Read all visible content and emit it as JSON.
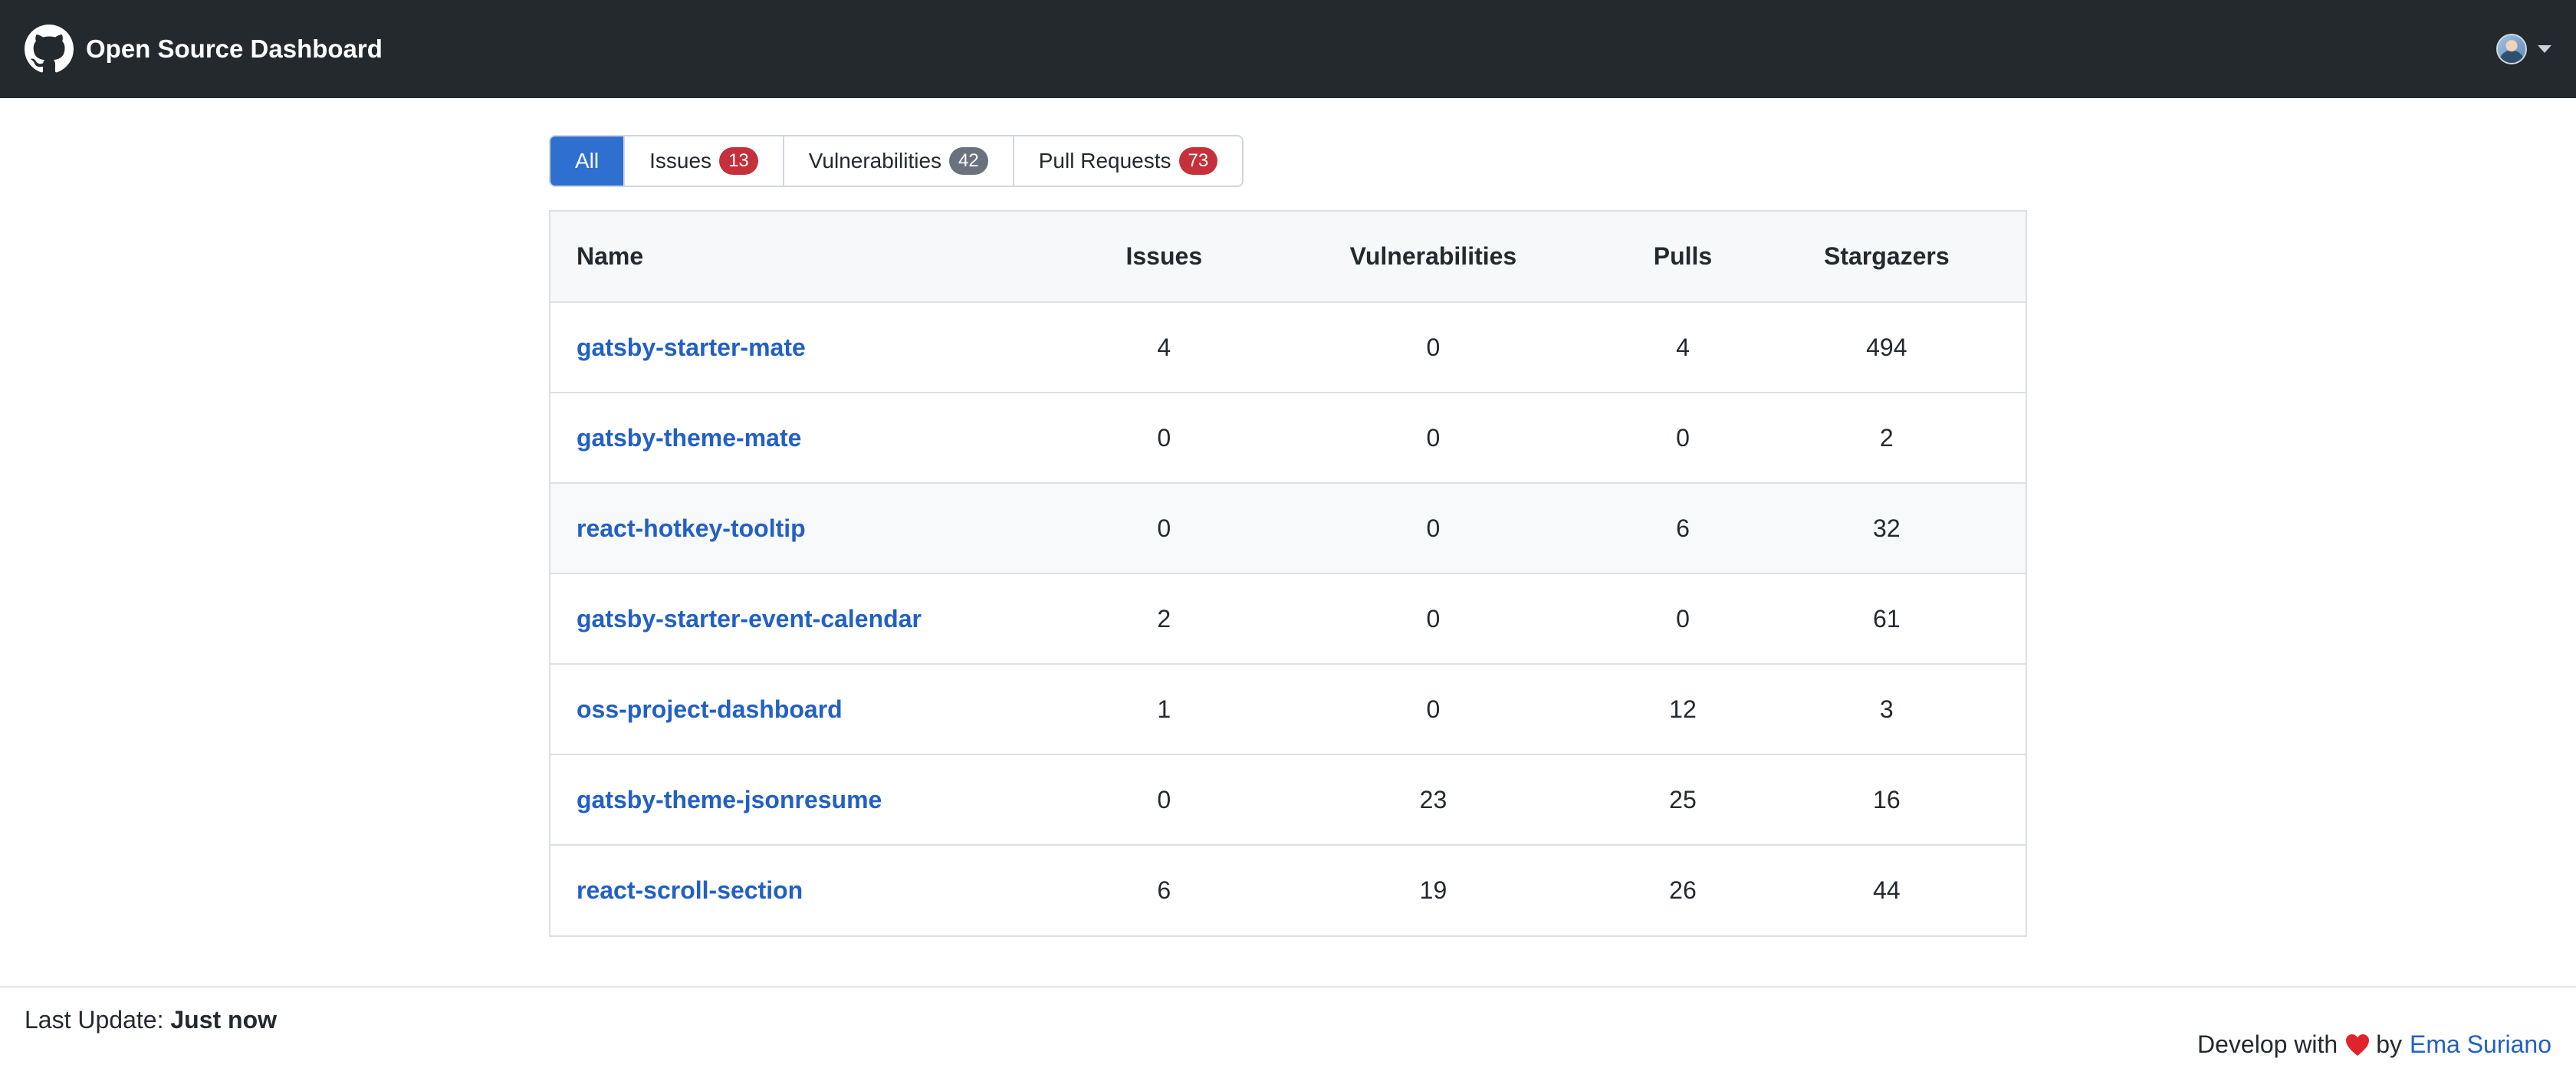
{
  "header": {
    "title": "Open Source Dashboard",
    "logo_icon": "github-icon",
    "avatar_icon": "user-avatar",
    "menu_icon": "chevron-down-icon"
  },
  "tabs": [
    {
      "label": "All",
      "count": null,
      "active": true
    },
    {
      "label": "Issues",
      "count": "13",
      "badge_color": "#c5303a"
    },
    {
      "label": "Vulnerabilities",
      "count": "42",
      "badge_color": "#6a737d"
    },
    {
      "label": "Pull Requests",
      "count": "73",
      "badge_color": "#c5303a"
    }
  ],
  "table": {
    "columns": [
      "Name",
      "Issues",
      "Vulnerabilities",
      "Pulls",
      "Stargazers"
    ],
    "rows": [
      {
        "name": "gatsby-starter-mate",
        "issues": "4",
        "vulnerabilities": "0",
        "pulls": "4",
        "stargazers": "494"
      },
      {
        "name": "gatsby-theme-mate",
        "issues": "0",
        "vulnerabilities": "0",
        "pulls": "0",
        "stargazers": "2"
      },
      {
        "name": "react-hotkey-tooltip",
        "issues": "0",
        "vulnerabilities": "0",
        "pulls": "6",
        "stargazers": "32"
      },
      {
        "name": "gatsby-starter-event-calendar",
        "issues": "2",
        "vulnerabilities": "0",
        "pulls": "0",
        "stargazers": "61"
      },
      {
        "name": "oss-project-dashboard",
        "issues": "1",
        "vulnerabilities": "0",
        "pulls": "12",
        "stargazers": "3"
      },
      {
        "name": "gatsby-theme-jsonresume",
        "issues": "0",
        "vulnerabilities": "23",
        "pulls": "25",
        "stargazers": "16"
      },
      {
        "name": "react-scroll-section",
        "issues": "6",
        "vulnerabilities": "19",
        "pulls": "26",
        "stargazers": "44"
      }
    ]
  },
  "footer": {
    "last_update_label": "Last Update:",
    "last_update_value": "Just now",
    "credits_prefix": "Develop with",
    "credits_by": "by",
    "author": "Ema Suriano",
    "heart_icon": "heart-icon"
  },
  "colors": {
    "topbar": "#24292e",
    "accent": "#2f6fd0",
    "link": "#2260c4",
    "badge_red": "#c5303a",
    "badge_gray": "#6a737d"
  }
}
